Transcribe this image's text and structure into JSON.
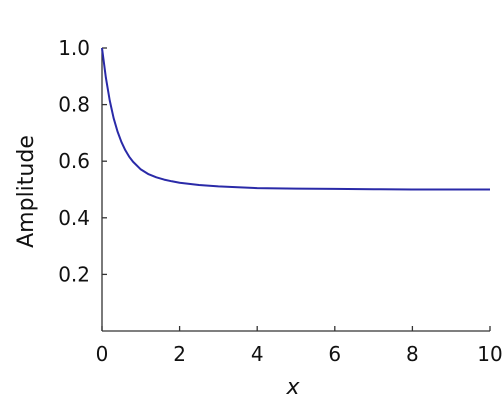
{
  "chart_data": {
    "type": "line",
    "title": "",
    "xlabel": "x",
    "ylabel": "Amplitude",
    "xlim": [
      0,
      10
    ],
    "ylim": [
      0,
      1.0
    ],
    "x_ticks": [
      0,
      2,
      4,
      6,
      8,
      10
    ],
    "x_tick_labels": [
      "0",
      "2",
      "4",
      "6",
      "8",
      "10"
    ],
    "y_ticks": [
      0.2,
      0.4,
      0.6,
      0.8,
      1.0
    ],
    "y_tick_labels": [
      "0.2",
      "0.4",
      "0.6",
      "0.8",
      "1.0"
    ],
    "grid": false,
    "legend": "none",
    "series": [
      {
        "color": "#2a2aa8",
        "x": [
          0,
          0.1,
          0.2,
          0.3,
          0.4,
          0.5,
          0.6,
          0.7,
          0.8,
          1.0,
          1.2,
          1.4,
          1.6,
          1.8,
          2.0,
          2.5,
          3.0,
          3.5,
          4.0,
          5.0,
          6.0,
          7.0,
          8.0,
          9.0,
          10.0
        ],
        "y": [
          1.0,
          0.895,
          0.814,
          0.752,
          0.705,
          0.668,
          0.639,
          0.616,
          0.598,
          0.571,
          0.554,
          0.543,
          0.535,
          0.529,
          0.524,
          0.516,
          0.511,
          0.508,
          0.505,
          0.503,
          0.502,
          0.501,
          0.5,
          0.5,
          0.5
        ]
      }
    ]
  }
}
